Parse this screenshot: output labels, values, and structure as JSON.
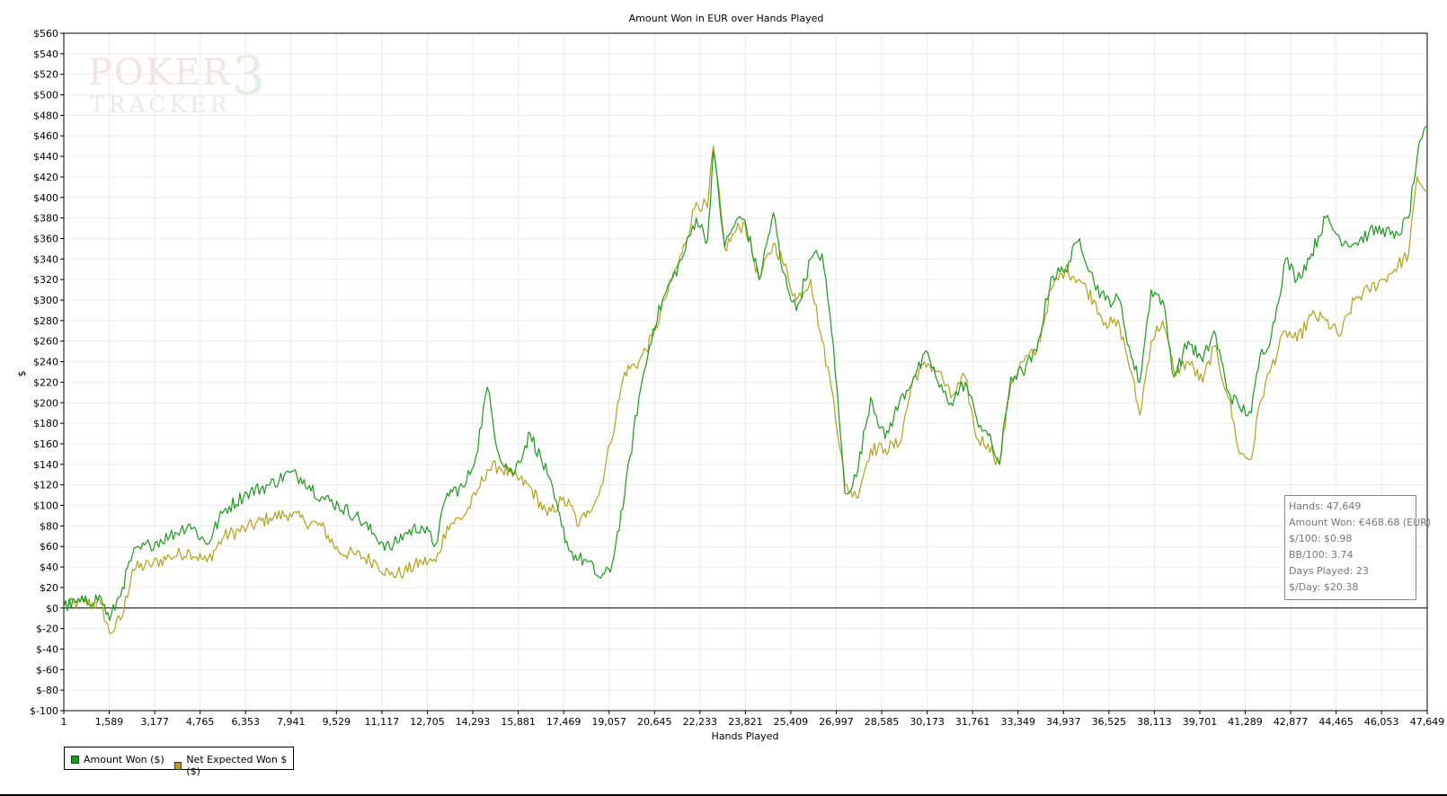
{
  "chart_data": {
    "type": "line",
    "title": "Amount Won in EUR over Hands Played",
    "xlabel": "Hands Played",
    "ylabel": "$",
    "xlim": [
      1,
      47649
    ],
    "ylim": [
      -100,
      560
    ],
    "yticks": [
      -100,
      -80,
      -60,
      -40,
      -20,
      0,
      20,
      40,
      60,
      80,
      100,
      120,
      140,
      160,
      180,
      200,
      220,
      240,
      260,
      280,
      300,
      320,
      340,
      360,
      380,
      400,
      420,
      440,
      460,
      480,
      500,
      520,
      540,
      560
    ],
    "ytick_labels": [
      "$-100",
      "$-80",
      "$-60",
      "$-40",
      "$-20",
      "$0",
      "$20",
      "$40",
      "$60",
      "$80",
      "$100",
      "$120",
      "$140",
      "$160",
      "$180",
      "$200",
      "$220",
      "$240",
      "$260",
      "$280",
      "$300",
      "$320",
      "$340",
      "$360",
      "$380",
      "$400",
      "$420",
      "$440",
      "$460",
      "$480",
      "$500",
      "$520",
      "$540",
      "$560"
    ],
    "xticks": [
      1,
      1589,
      3177,
      4765,
      6353,
      7941,
      9529,
      11117,
      12705,
      14293,
      15881,
      17469,
      19057,
      20645,
      22233,
      23821,
      25409,
      26997,
      28585,
      30173,
      31761,
      33349,
      34937,
      36525,
      38113,
      39701,
      41289,
      42877,
      44465,
      46053,
      47649
    ],
    "xtick_labels": [
      "1",
      "1,589",
      "3,177",
      "4,765",
      "6,353",
      "7,941",
      "9,529",
      "11,117",
      "12,705",
      "14,293",
      "15,881",
      "17,469",
      "19,057",
      "20,645",
      "22,233",
      "23,821",
      "25,409",
      "26,997",
      "28,585",
      "30,173",
      "31,761",
      "33,349",
      "34,937",
      "36,525",
      "38,113",
      "39,701",
      "41,289",
      "42,877",
      "44,465",
      "46,053",
      "47,649"
    ],
    "grid": true,
    "legend_position": "bottom-left",
    "series": [
      {
        "name": "Amount Won ($)",
        "color": "#1a9c1a",
        "x": [
          1,
          700,
          1300,
          1600,
          2050,
          2400,
          3000,
          3700,
          4400,
          5000,
          5600,
          6400,
          7200,
          7900,
          8400,
          9000,
          9600,
          10200,
          10900,
          11400,
          11900,
          12500,
          13000,
          13400,
          14000,
          14400,
          14800,
          15200,
          15700,
          16300,
          16900,
          17400,
          17700,
          18000,
          18300,
          18700,
          19100,
          19600,
          20100,
          20600,
          21000,
          21600,
          22100,
          22500,
          22700,
          23100,
          23500,
          23800,
          24300,
          24800,
          25100,
          25600,
          26100,
          26500,
          26900,
          27300,
          27700,
          28200,
          28700,
          29200,
          29700,
          30200,
          30600,
          31000,
          31500,
          31900,
          32300,
          32700,
          33100,
          33500,
          34000,
          34500,
          35000,
          35500,
          36000,
          36400,
          36900,
          37300,
          37600,
          38000,
          38400,
          38800,
          39300,
          39800,
          40200,
          40700,
          41100,
          41500,
          41800,
          42200,
          42700,
          43100,
          43600,
          44100,
          44600,
          45100,
          45600,
          46100,
          46500,
          47000,
          47300,
          47649
        ],
        "values": [
          2,
          6,
          10,
          -12,
          20,
          52,
          62,
          70,
          82,
          62,
          95,
          112,
          120,
          132,
          125,
          108,
          100,
          90,
          70,
          58,
          72,
          80,
          62,
          112,
          118,
          148,
          215,
          150,
          130,
          170,
          130,
          80,
          55,
          48,
          45,
          30,
          35,
          110,
          205,
          272,
          305,
          340,
          380,
          358,
          445,
          352,
          378,
          378,
          320,
          385,
          330,
          290,
          340,
          345,
          255,
          112,
          128,
          205,
          165,
          200,
          225,
          248,
          215,
          200,
          220,
          185,
          168,
          140,
          225,
          230,
          250,
          322,
          330,
          360,
          318,
          300,
          300,
          245,
          220,
          310,
          300,
          225,
          260,
          240,
          270,
          210,
          195,
          190,
          245,
          265,
          340,
          320,
          345,
          380,
          360,
          355,
          365,
          370,
          360,
          380,
          440,
          470
        ]
      },
      {
        "name": "Net Expected Won $ ($)",
        "color": "#b3a119",
        "x": [
          1,
          700,
          1300,
          1600,
          2050,
          2400,
          3000,
          3700,
          4400,
          5000,
          5600,
          6400,
          7200,
          7900,
          8400,
          9000,
          9600,
          10200,
          10900,
          11400,
          11900,
          12500,
          13000,
          13400,
          14000,
          14400,
          14800,
          15200,
          15700,
          16300,
          16900,
          17400,
          17700,
          18000,
          18300,
          18700,
          19100,
          19600,
          20100,
          20600,
          21000,
          21600,
          22100,
          22500,
          22700,
          23100,
          23500,
          23800,
          24300,
          24800,
          25100,
          25600,
          26100,
          26500,
          26900,
          27300,
          27700,
          28200,
          28700,
          29200,
          29700,
          30200,
          30600,
          31000,
          31500,
          31900,
          32300,
          32700,
          33100,
          33500,
          34000,
          34500,
          35000,
          35500,
          36000,
          36400,
          36900,
          37300,
          37600,
          38000,
          38400,
          38800,
          39300,
          39800,
          40200,
          40700,
          41100,
          41500,
          41800,
          42200,
          42700,
          43100,
          43600,
          44100,
          44600,
          45100,
          45600,
          46100,
          46500,
          47000,
          47300,
          47649
        ],
        "values": [
          2,
          5,
          4,
          -25,
          -8,
          38,
          42,
          50,
          55,
          45,
          70,
          78,
          88,
          92,
          85,
          80,
          55,
          52,
          45,
          32,
          35,
          45,
          45,
          80,
          90,
          110,
          135,
          138,
          128,
          118,
          90,
          105,
          100,
          80,
          95,
          110,
          160,
          230,
          240,
          265,
          300,
          345,
          395,
          390,
          450,
          350,
          368,
          375,
          320,
          355,
          340,
          300,
          320,
          260,
          205,
          120,
          108,
          155,
          155,
          160,
          225,
          238,
          230,
          205,
          225,
          165,
          160,
          140,
          220,
          240,
          250,
          310,
          330,
          320,
          300,
          278,
          275,
          230,
          188,
          260,
          280,
          230,
          240,
          220,
          255,
          205,
          150,
          145,
          200,
          235,
          270,
          260,
          285,
          280,
          265,
          300,
          310,
          320,
          330,
          345,
          420,
          405
        ]
      }
    ]
  },
  "legend": {
    "items": [
      {
        "label": "Amount Won ($)",
        "color": "#1a9c1a"
      },
      {
        "label": "Net Expected Won $ ($)",
        "color": "#b3a119"
      }
    ]
  },
  "stats": {
    "hands": "Hands: 47,649",
    "amount_won": "Amount Won: €468.68 (EUR)",
    "per100": "$/100: $0.98",
    "bb100": "BB/100: 3.74",
    "days": "Days Played: 23",
    "per_day": "$/Day: $20.38"
  },
  "watermark": {
    "line1": "POKER",
    "digit": "3",
    "line2": "TRACKER"
  }
}
